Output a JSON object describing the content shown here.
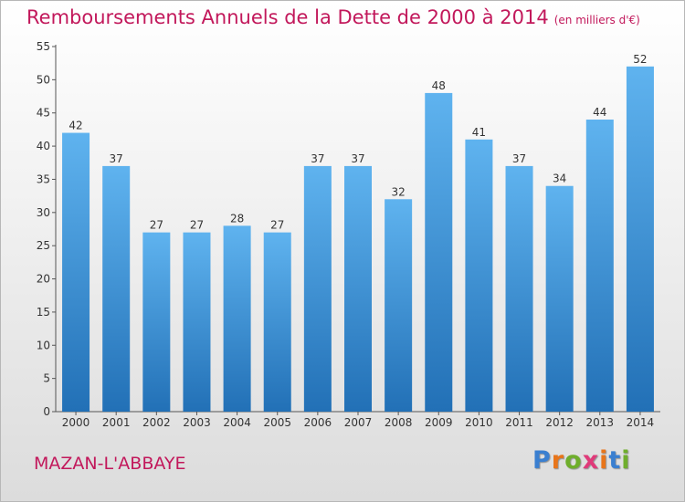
{
  "header": {
    "title": "Remboursements Annuels de la Dette de 2000 à 2014",
    "unit": "(en milliers d'€)"
  },
  "footer": {
    "commune": "MAZAN-L'ABBAYE",
    "logo": {
      "letters": [
        "P",
        "r",
        "o",
        "x",
        "i",
        "t",
        "i"
      ],
      "colors": [
        "#3a7fd0",
        "#e8751a",
        "#6fae2c",
        "#e03a7a",
        "#e8751a",
        "#3a7fd0",
        "#6fae2c"
      ]
    }
  },
  "colors": {
    "title": "#c2185b",
    "bar_top": "#5fb3ef",
    "bar_bottom": "#2270b6"
  },
  "chart_data": {
    "type": "bar",
    "title": "Remboursements Annuels de la Dette de 2000 à 2014",
    "categories": [
      "2000",
      "2001",
      "2002",
      "2003",
      "2004",
      "2005",
      "2006",
      "2007",
      "2008",
      "2009",
      "2010",
      "2011",
      "2012",
      "2013",
      "2014"
    ],
    "values": [
      42,
      37,
      27,
      27,
      28,
      27,
      37,
      37,
      32,
      48,
      41,
      37,
      34,
      44,
      52
    ],
    "ylim": [
      0,
      55
    ],
    "yticks": [
      0,
      5,
      10,
      15,
      20,
      25,
      30,
      35,
      40,
      45,
      50,
      55
    ],
    "grid": false
  }
}
